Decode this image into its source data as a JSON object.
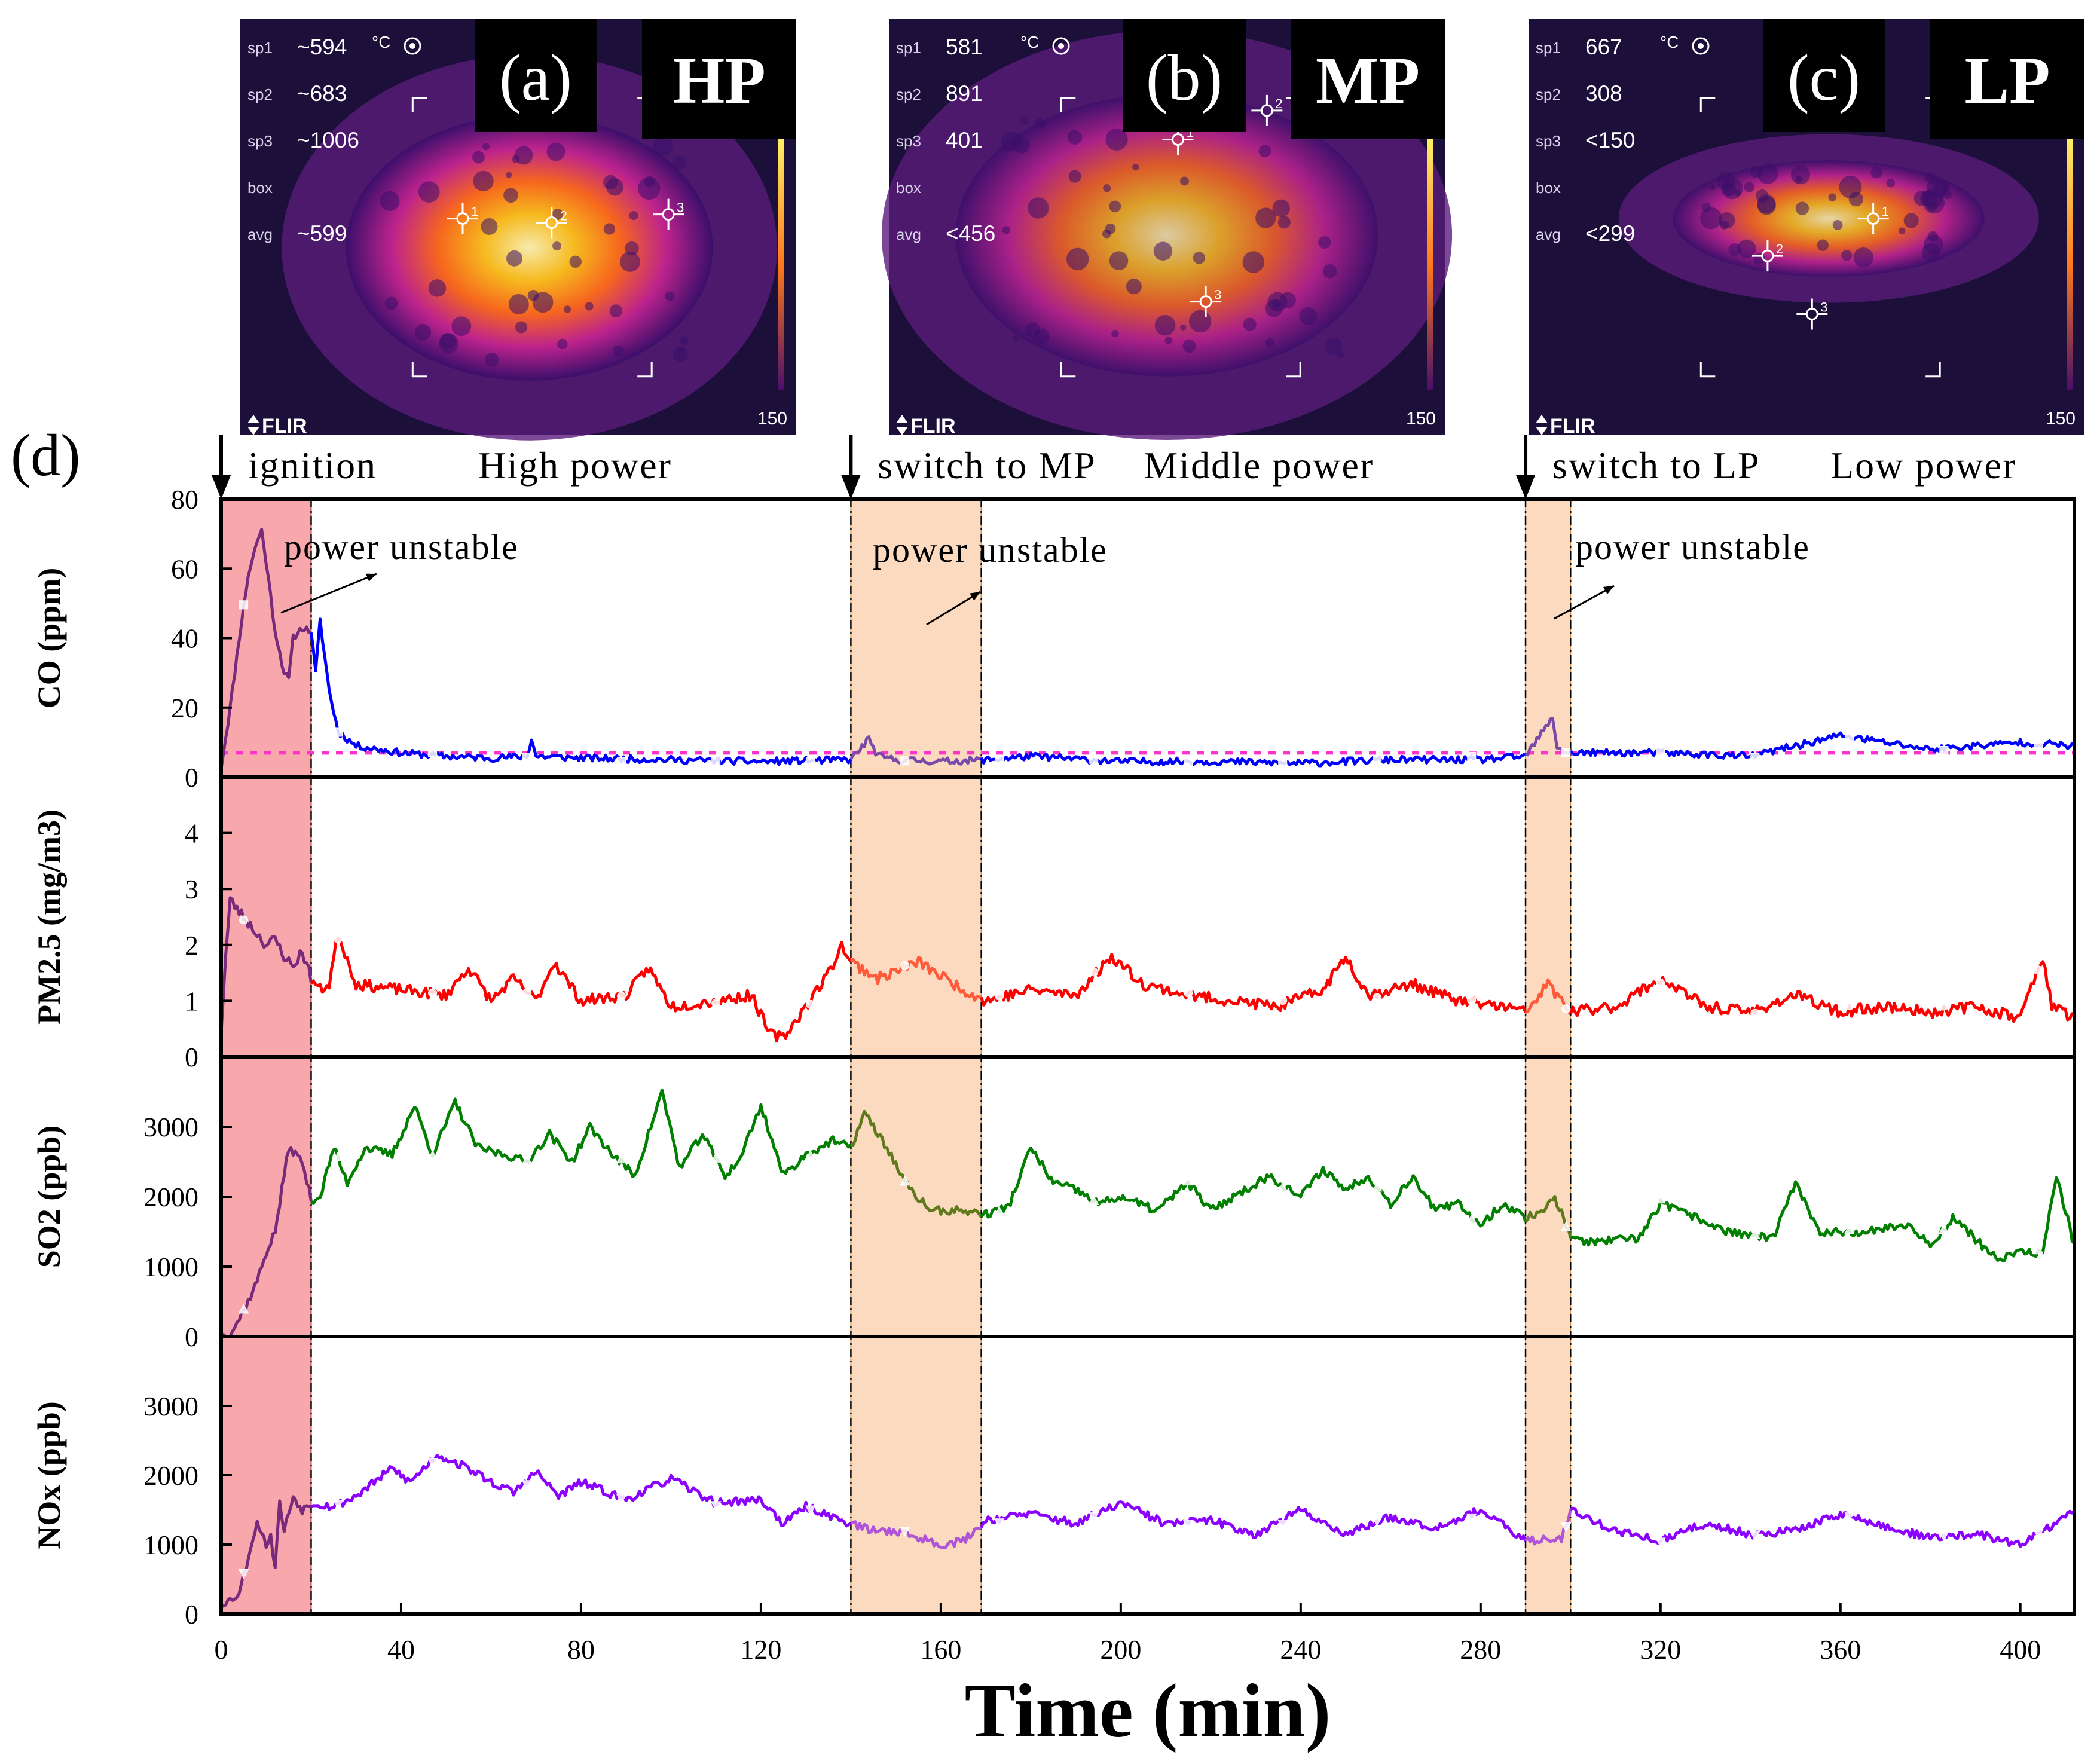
{
  "thermal_panels": [
    {
      "letter": "(a)",
      "mode": "HP",
      "readouts": [
        {
          "label": "sp1",
          "value": "~594"
        },
        {
          "label": "sp2",
          "value": "~683"
        },
        {
          "label": "sp3",
          "value": "~1006"
        },
        {
          "label": "box",
          "value": ""
        },
        {
          "label": "avg",
          "value": "~599"
        }
      ],
      "unit": "°C",
      "brand": "FLIR",
      "scale_value": "150",
      "spot_markers": [
        "1",
        "2",
        "3"
      ]
    },
    {
      "letter": "(b)",
      "mode": "MP",
      "readouts": [
        {
          "label": "sp1",
          "value": "581"
        },
        {
          "label": "sp2",
          "value": "891"
        },
        {
          "label": "sp3",
          "value": "401"
        },
        {
          "label": "box",
          "value": ""
        },
        {
          "label": "avg",
          "value": "<456"
        }
      ],
      "unit": "°C",
      "brand": "FLIR",
      "scale_value": "150",
      "spot_markers": [
        "1",
        "2",
        "3"
      ]
    },
    {
      "letter": "(c)",
      "mode": "LP",
      "readouts": [
        {
          "label": "sp1",
          "value": "667"
        },
        {
          "label": "sp2",
          "value": "308"
        },
        {
          "label": "sp3",
          "value": "<150"
        },
        {
          "label": "box",
          "value": ""
        },
        {
          "label": "avg",
          "value": "<299"
        }
      ],
      "unit": "°C",
      "brand": "FLIR",
      "scale_value": "150",
      "spot_markers": [
        "1",
        "2",
        "3"
      ]
    }
  ],
  "panel_d_label": "(d)",
  "phase_labels": [
    {
      "event": "ignition",
      "phase": "High power",
      "at_min": 0
    },
    {
      "event": "switch to MP",
      "phase": "Middle power",
      "at_min": 140
    },
    {
      "event": "switch to LP",
      "phase": "Low power",
      "at_min": 290
    }
  ],
  "annotation_text": "power unstable",
  "colors": {
    "ignition_band": "#f8a4a8",
    "unstable_band": "#fbd9bd",
    "CO": "#0000ff",
    "PM2.5": "#ff0000",
    "SO2": "#007f00",
    "NOx": "#8b00ff",
    "CO_reference": "#ff33cc",
    "ignition_tint": "#7a2a7a"
  },
  "chart_data": {
    "type": "line",
    "xlabel": "Time (min)",
    "xlim": [
      0,
      412
    ],
    "xticks": [
      0,
      40,
      80,
      120,
      160,
      200,
      240,
      280,
      320,
      360,
      400
    ],
    "shaded_regions": [
      {
        "kind": "ignition",
        "x": [
          0,
          20
        ]
      },
      {
        "kind": "power unstable",
        "x": [
          140,
          169
        ]
      },
      {
        "kind": "power unstable",
        "x": [
          290,
          300
        ]
      }
    ],
    "panels": [
      {
        "key": "CO",
        "ylabel": "CO (ppm)",
        "ylim": [
          0,
          80
        ],
        "yticks": [
          0,
          20,
          40,
          60,
          80
        ],
        "reference_line": 7,
        "noise": 1.0,
        "seed": 11,
        "x": [
          0,
          2,
          4,
          6,
          8,
          9,
          10,
          12,
          14,
          15,
          16,
          18,
          20,
          21,
          22,
          23,
          24,
          26,
          30,
          40,
          50,
          60,
          68,
          69,
          70,
          80,
          100,
          120,
          140,
          144,
          146,
          150,
          160,
          170,
          180,
          200,
          220,
          240,
          260,
          280,
          290,
          296,
          297,
          299,
          300,
          320,
          340,
          350,
          360,
          380,
          400,
          412
        ],
        "y": [
          3,
          20,
          40,
          58,
          68,
          71,
          62,
          42,
          30,
          28,
          40,
          43,
          42,
          30,
          45,
          35,
          25,
          13,
          9,
          7,
          6,
          5.5,
          6,
          11,
          6,
          5.5,
          5,
          4.5,
          5,
          11,
          6,
          5,
          4.5,
          5,
          6,
          4.5,
          4.5,
          4,
          5,
          5,
          6,
          17,
          9,
          7,
          7,
          7,
          6,
          9,
          12,
          8,
          10,
          9
        ]
      },
      {
        "key": "PM2.5",
        "ylabel": "PM2.5 (mg/m3)",
        "ylim": [
          0,
          5
        ],
        "yticks": [
          0,
          1,
          2,
          3,
          4
        ],
        "noise": 0.1,
        "seed": 23,
        "x": [
          0,
          1,
          2,
          4,
          6,
          8,
          10,
          12,
          14,
          16,
          18,
          20,
          22,
          24,
          26,
          30,
          40,
          50,
          55,
          60,
          65,
          70,
          74,
          80,
          90,
          95,
          100,
          110,
          118,
          122,
          125,
          130,
          135,
          138,
          140,
          146,
          155,
          165,
          170,
          180,
          190,
          198,
          205,
          215,
          225,
          235,
          245,
          250,
          255,
          265,
          275,
          285,
          290,
          295,
          298,
          300,
          310,
          320,
          330,
          340,
          350,
          360,
          370,
          380,
          390,
          400,
          405,
          407,
          412
        ],
        "y": [
          0.5,
          1.8,
          2.8,
          2.6,
          2.4,
          2.2,
          2.0,
          2.1,
          1.8,
          1.6,
          1.9,
          1.4,
          1.2,
          1.3,
          2.2,
          1.3,
          1.2,
          1.1,
          1.6,
          1.0,
          1.4,
          1.0,
          1.7,
          1.0,
          1.1,
          1.6,
          0.9,
          1.0,
          1.1,
          0.4,
          0.35,
          0.9,
          1.5,
          2.0,
          1.7,
          1.4,
          1.7,
          1.2,
          1.0,
          1.2,
          1.1,
          1.8,
          1.3,
          1.1,
          1.0,
          0.9,
          1.2,
          1.8,
          1.1,
          1.3,
          1.0,
          0.9,
          0.8,
          1.3,
          1.0,
          0.8,
          0.9,
          1.4,
          0.9,
          0.8,
          1.1,
          0.8,
          0.9,
          0.8,
          0.9,
          0.7,
          1.8,
          0.9,
          0.7
        ]
      },
      {
        "key": "SO2",
        "ylabel": "SO2 (ppb)",
        "ylim": [
          0,
          4000
        ],
        "yticks": [
          0,
          1000,
          2000,
          3000
        ],
        "noise": 60,
        "seed": 37,
        "x": [
          0,
          2,
          4,
          6,
          8,
          10,
          12,
          14,
          15,
          16,
          18,
          20,
          22,
          25,
          28,
          32,
          38,
          43,
          47,
          52,
          57,
          63,
          68,
          73,
          78,
          82,
          87,
          92,
          98,
          102,
          107,
          112,
          115,
          120,
          125,
          130,
          136,
          140,
          143,
          148,
          153,
          158,
          165,
          170,
          175,
          180,
          185,
          190,
          195,
          200,
          208,
          215,
          220,
          225,
          233,
          240,
          245,
          250,
          255,
          260,
          265,
          270,
          275,
          280,
          285,
          290,
          294,
          296,
          298,
          300,
          305,
          315,
          320,
          328,
          335,
          345,
          350,
          355,
          365,
          375,
          380,
          385,
          390,
          395,
          400,
          405,
          408,
          412
        ],
        "y": [
          0,
          50,
          250,
          500,
          800,
          1200,
          1500,
          2300,
          2700,
          2650,
          2500,
          1950,
          2000,
          2700,
          2200,
          2700,
          2600,
          3300,
          2600,
          3350,
          2700,
          2600,
          2500,
          2900,
          2500,
          3000,
          2600,
          2300,
          3500,
          2400,
          2900,
          2300,
          2500,
          3300,
          2300,
          2600,
          2800,
          2700,
          3200,
          2700,
          2100,
          1800,
          1800,
          1750,
          1850,
          2700,
          2200,
          2100,
          1900,
          2000,
          1800,
          2200,
          1800,
          2000,
          2300,
          2000,
          2400,
          2100,
          2300,
          1900,
          2300,
          1800,
          1900,
          1600,
          1900,
          1700,
          1800,
          2000,
          1800,
          1400,
          1350,
          1400,
          1900,
          1700,
          1500,
          1400,
          2200,
          1500,
          1500,
          1600,
          1300,
          1700,
          1400,
          1100,
          1200,
          1200,
          2300,
          1300
        ]
      },
      {
        "key": "NOx",
        "ylabel": "NOx (ppb)",
        "ylim": [
          0,
          4000
        ],
        "yticks": [
          0,
          1000,
          2000,
          3000
        ],
        "noise": 60,
        "seed": 53,
        "x": [
          0,
          2,
          4,
          6,
          7,
          8,
          9,
          10,
          11,
          12,
          13,
          14,
          16,
          18,
          20,
          25,
          30,
          38,
          42,
          48,
          55,
          60,
          65,
          70,
          75,
          80,
          90,
          100,
          110,
          120,
          125,
          130,
          140,
          145,
          150,
          160,
          165,
          170,
          180,
          190,
          200,
          210,
          220,
          230,
          240,
          250,
          260,
          270,
          280,
          290,
          298,
          300,
          310,
          320,
          330,
          340,
          350,
          360,
          370,
          380,
          390,
          400,
          410,
          412
        ],
        "y": [
          150,
          200,
          300,
          800,
          1100,
          1300,
          1200,
          1000,
          1100,
          700,
          1600,
          1200,
          1700,
          1500,
          1600,
          1550,
          1700,
          2100,
          1900,
          2300,
          2100,
          1900,
          1750,
          2050,
          1700,
          1900,
          1650,
          1950,
          1600,
          1650,
          1300,
          1550,
          1300,
          1200,
          1200,
          1000,
          1050,
          1350,
          1450,
          1300,
          1600,
          1300,
          1350,
          1150,
          1500,
          1150,
          1400,
          1250,
          1500,
          1050,
          1100,
          1500,
          1200,
          1050,
          1300,
          1150,
          1200,
          1450,
          1250,
          1100,
          1150,
          1000,
          1400,
          1450
        ]
      }
    ]
  }
}
